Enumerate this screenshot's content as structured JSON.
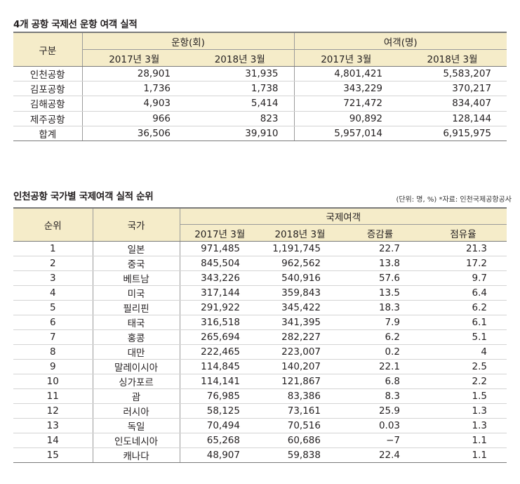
{
  "table1": {
    "title": "4개 공항 국제선 운항 여객 실적",
    "header": {
      "category": "구분",
      "flights_group": "운항(회)",
      "passengers_group": "여객(명)",
      "flights_2017": "2017년 3월",
      "flights_2018": "2018년 3월",
      "passengers_2017": "2017년 3월",
      "passengers_2018": "2018년 3월"
    },
    "rows": [
      [
        "인천공항",
        "28,901",
        "31,935",
        "4,801,421",
        "5,583,207"
      ],
      [
        "김포공항",
        "1,736",
        "1,738",
        "343,229",
        "370,217"
      ],
      [
        "김해공항",
        "4,903",
        "5,414",
        "721,472",
        "834,407"
      ],
      [
        "제주공항",
        "966",
        "823",
        "90,892",
        "128,144"
      ],
      [
        "합계",
        "36,506",
        "39,910",
        "5,957,014",
        "6,915,975"
      ]
    ]
  },
  "table2": {
    "title": "인천공항 국가별 국제여객 실적 순위",
    "note": "(단위: 명, %) *자료: 인천국제공항공사",
    "header": {
      "rank": "순위",
      "country": "국가",
      "group": "국제여객",
      "y2017": "2017년 3월",
      "y2018": "2018년 3월",
      "growth": "증감률",
      "share": "점유율"
    },
    "rows": [
      [
        "1",
        "일본",
        "971,485",
        "1,191,745",
        "22.7",
        "21.3"
      ],
      [
        "2",
        "중국",
        "845,504",
        "962,562",
        "13.8",
        "17.2"
      ],
      [
        "3",
        "베트남",
        "343,226",
        "540,916",
        "57.6",
        "9.7"
      ],
      [
        "4",
        "미국",
        "317,144",
        "359,843",
        "13.5",
        "6.4"
      ],
      [
        "5",
        "필리핀",
        "291,922",
        "345,422",
        "18.3",
        "6.2"
      ],
      [
        "6",
        "태국",
        "316,518",
        "341,395",
        "7.9",
        "6.1"
      ],
      [
        "7",
        "홍콩",
        "265,694",
        "282,227",
        "6.2",
        "5.1"
      ],
      [
        "8",
        "대만",
        "222,465",
        "223,007",
        "0.2",
        "4"
      ],
      [
        "9",
        "말레이시아",
        "114,845",
        "140,207",
        "22.1",
        "2.5"
      ],
      [
        "10",
        "싱가포르",
        "114,141",
        "121,867",
        "6.8",
        "2.2"
      ],
      [
        "11",
        "괌",
        "76,985",
        "83,386",
        "8.3",
        "1.5"
      ],
      [
        "12",
        "러시아",
        "58,125",
        "73,161",
        "25.9",
        "1.3"
      ],
      [
        "13",
        "독일",
        "70,494",
        "70,516",
        "0.03",
        "1.3"
      ],
      [
        "14",
        "인도네시아",
        "65,268",
        "60,686",
        "−7",
        "1.1"
      ],
      [
        "15",
        "캐나다",
        "48,907",
        "59,838",
        "22.4",
        "1.1"
      ]
    ]
  }
}
